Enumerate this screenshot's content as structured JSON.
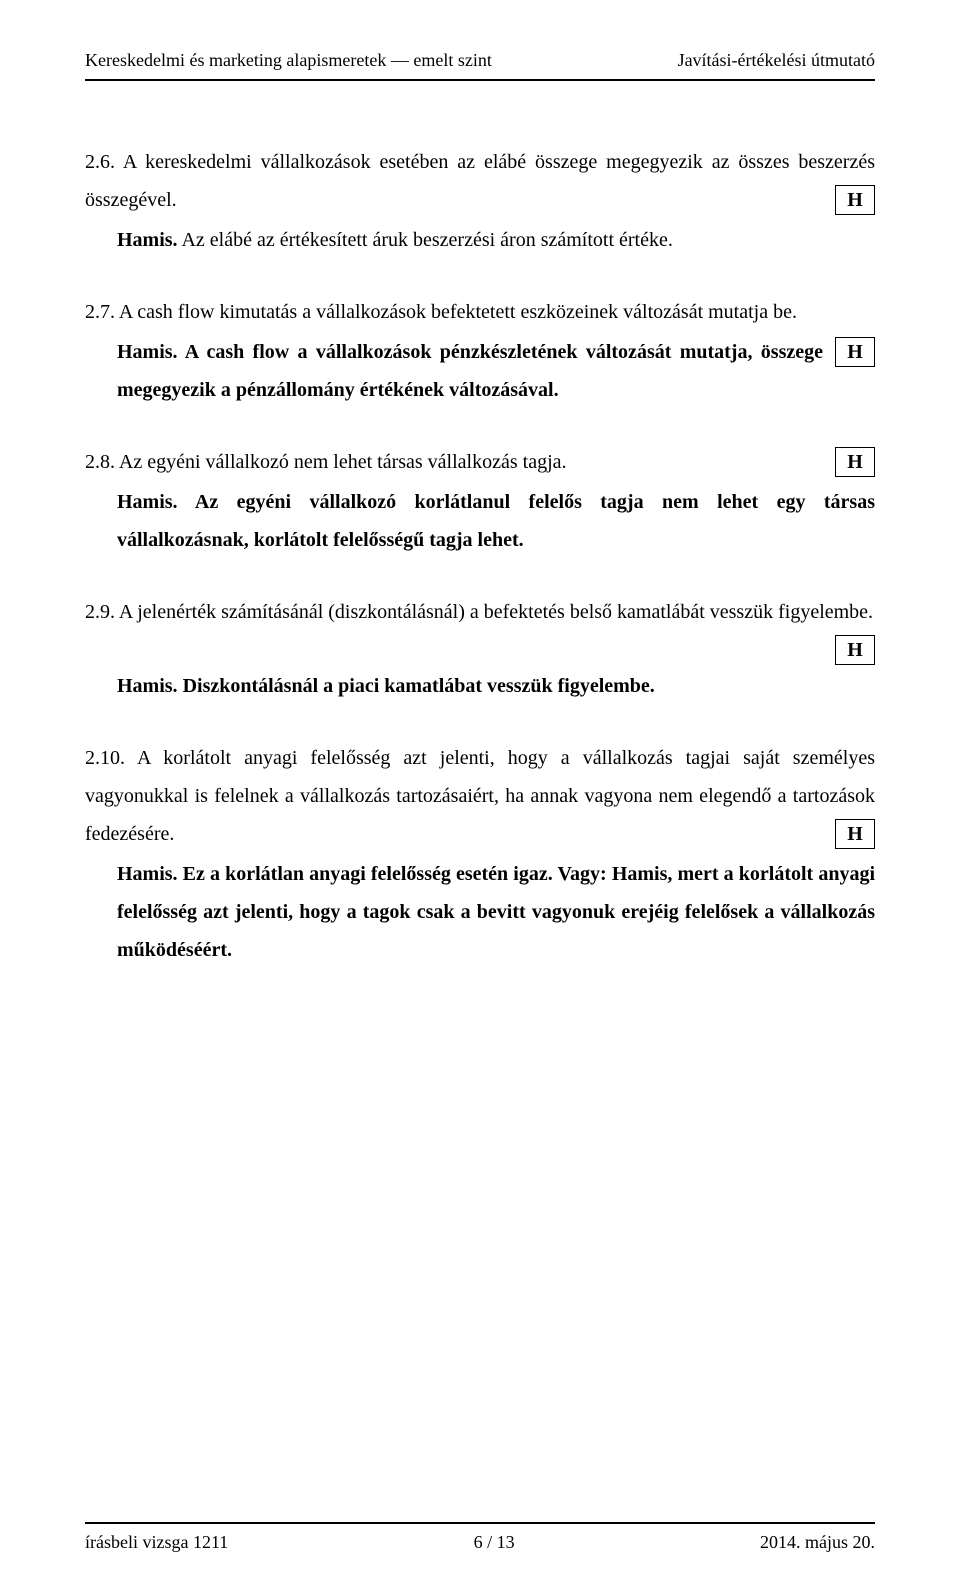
{
  "header": {
    "left": "Kereskedelmi és marketing alapismeretek — emelt szint",
    "right": "Javítási-értékelési útmutató"
  },
  "items": [
    {
      "num": "2.6.",
      "text": "A kereskedelmi vállalkozások esetében az elábé összege megegyezik az összes beszerzés összegével.",
      "box": "H",
      "answer_lead": "Hamis.",
      "answer_rest": " Az elábé az értékesített áruk beszerzési áron számított értéke."
    },
    {
      "num": "2.7.",
      "text": "A cash flow kimutatás a vállalkozások befektetett eszközeinek változását mutatja be.",
      "box": "H",
      "answer_lead": "Hamis.",
      "answer_rest": " A cash flow a vállalkozások pénzkészletének változását mutatja, összege megegyezik a pénzállomány értékének változásával."
    },
    {
      "num": "2.8.",
      "text": "Az egyéni vállalkozó nem lehet társas vállalkozás tagja.",
      "box": "H",
      "answer_lead": "Hamis.",
      "answer_rest": " Az egyéni vállalkozó korlátlanul felelős tagja nem lehet egy társas vállalkozásnak, korlátolt felelősségű tagja lehet."
    },
    {
      "num": "2.9.",
      "text": "A jelenérték számításánál (diszkontálásnál) a befektetés belső kamatlábát vesszük figyelembe.",
      "box": "H",
      "answer_lead": "Hamis.",
      "answer_rest": " Diszkontálásnál a piaci kamatlábat vesszük figyelembe."
    },
    {
      "num": "2.10.",
      "text": "A korlátolt anyagi felelősség azt jelenti, hogy a vállalkozás tagjai saját személyes vagyonukkal is felelnek a vállalkozás tartozásaiért, ha annak vagyona nem elegendő a tartozások fedezésére.",
      "box": "H",
      "answer_lead": "Hamis.",
      "answer_rest": " Ez a korlátlan anyagi felelősség esetén igaz. Vagy: Hamis, mert a korlátolt anyagi felelősség azt jelenti, hogy a tagok csak a bevitt vagyonuk erejéig felelősek a vállalkozás működéséért."
    }
  ],
  "footer": {
    "left": "írásbeli vizsga 1211",
    "center": "6 / 13",
    "right": "2014. május 20."
  }
}
